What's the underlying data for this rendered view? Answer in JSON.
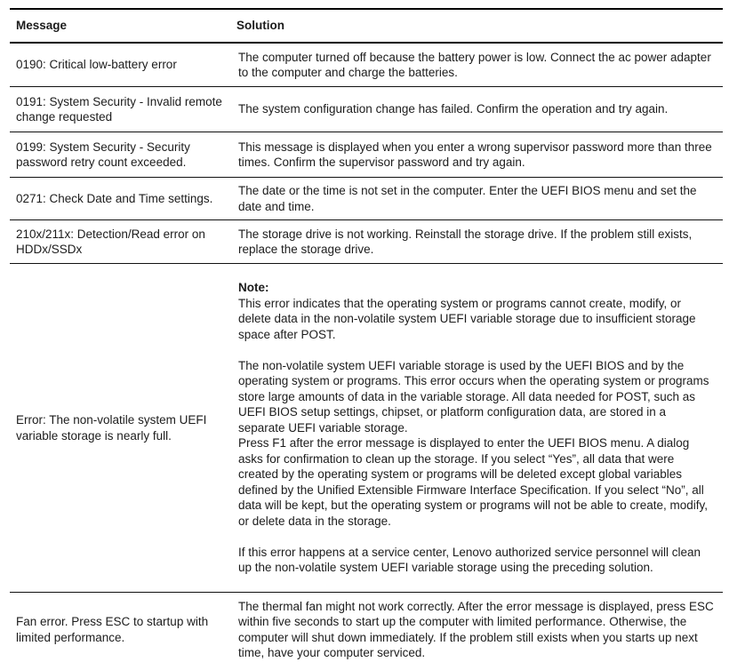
{
  "table": {
    "headers": {
      "message": "Message",
      "solution": "Solution"
    },
    "rows": [
      {
        "message": "0190: Critical low-battery error",
        "solution": "The computer turned off because the battery power is low. Connect the ac power adapter to the computer and charge the batteries."
      },
      {
        "message": "0191: System Security - Invalid remote change requested",
        "solution": "The system configuration change has failed. Confirm the operation and try again."
      },
      {
        "message": "0199: System Security - Security password retry count exceeded.",
        "solution": "This message is displayed when you enter a wrong supervisor password more than three times. Confirm the supervisor password and try again."
      },
      {
        "message": "0271: Check Date and Time settings.",
        "solution": "The date or the time is not set in the computer. Enter the UEFI BIOS menu and set the date and time."
      },
      {
        "message": "210x/211x: Detection/Read error on HDDx/SSDx",
        "solution": "The storage drive is not working. Reinstall the storage drive. If the problem still exists, replace the storage drive."
      },
      {
        "message": "Error: The non-volatile system UEFI variable storage is nearly full.",
        "note_label": "Note:",
        "paragraphs": [
          "This error indicates that the operating system or programs cannot create, modify, or delete data in the non-volatile system UEFI variable storage due to insufficient storage space after POST.",
          "The non-volatile system UEFI variable storage is used by the UEFI BIOS and by the operating system or programs. This error occurs when the operating system or programs store large amounts of data in the variable storage. All data needed for POST, such as UEFI BIOS setup settings, chipset, or platform configuration data, are stored in a separate UEFI variable storage.\nPress F1 after the error message is displayed to enter the UEFI BIOS menu. A dialog asks for confirmation to clean up the storage. If you select “Yes”, all data that were created by the operating system or programs will be deleted except global variables defined by the Unified Extensible Firmware Interface Specification. If you select “No”, all data will be kept, but the operating system or programs will not be able to create, modify, or delete data in the storage.",
          "If this error happens at a service center, Lenovo authorized service personnel will clean up the non-volatile system UEFI variable storage using the preceding solution."
        ]
      },
      {
        "message": "Fan error. Press ESC to startup with limited performance.",
        "solution": "The thermal fan might not work correctly. After the error message is displayed, press ESC within five seconds to start up the computer with limited performance. Otherwise, the computer will shut down immediately. If the problem still exists when you starts up next time, have your computer serviced."
      }
    ]
  }
}
